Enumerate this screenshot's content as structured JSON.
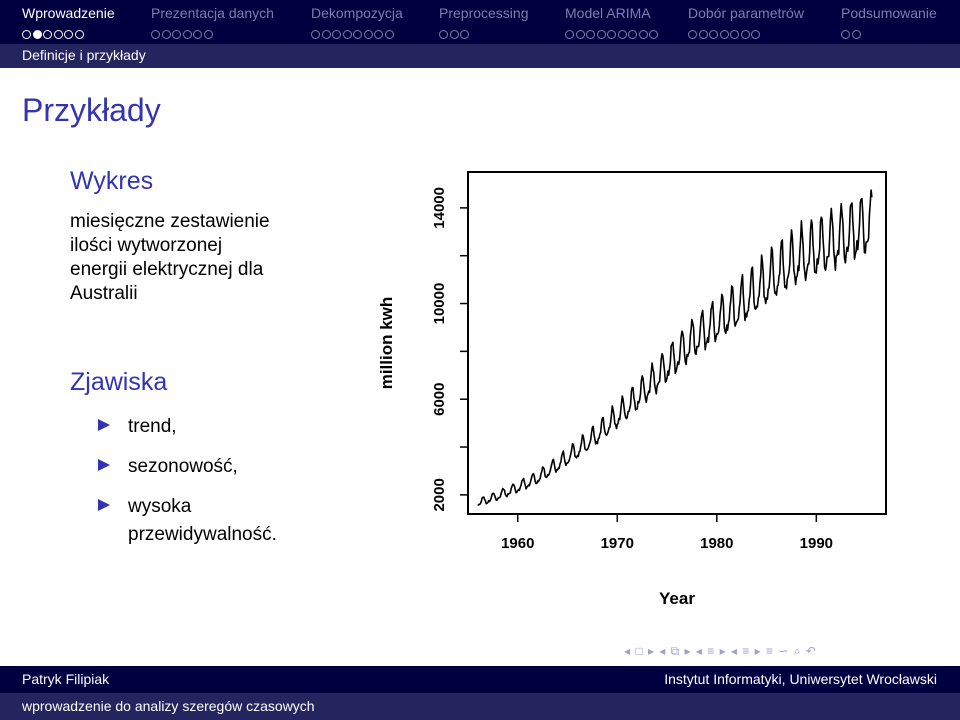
{
  "nav": {
    "sections": [
      {
        "label": "Wprowadzenie",
        "active": true,
        "dots": 6,
        "filled": [
          1
        ]
      },
      {
        "label": "Prezentacja danych",
        "active": false,
        "dots": 6,
        "filled": []
      },
      {
        "label": "Dekompozycja",
        "active": false,
        "dots": 8,
        "filled": []
      },
      {
        "label": "Preprocessing",
        "active": false,
        "dots": 3,
        "filled": []
      },
      {
        "label": "Model ARIMA",
        "active": false,
        "dots": 9,
        "filled": []
      },
      {
        "label": "Dobór parametrów",
        "active": false,
        "dots": 7,
        "filled": []
      },
      {
        "label": "Podsumowanie",
        "active": false,
        "dots": 2,
        "filled": []
      }
    ],
    "subsection": "Definicje i przykłady"
  },
  "frame": {
    "title": "Przykłady"
  },
  "block1": {
    "title": "Wykres",
    "lines": [
      "miesięczne zestawienie",
      "ilości wytworzonej",
      "energii elektrycznej dla",
      "Australii"
    ]
  },
  "block2": {
    "title": "Zjawiska",
    "items": [
      "trend,",
      "sezonowość,",
      "wysoka",
      "przewidywalność."
    ]
  },
  "nav_symbols": "◂ □ ▸ ◂ ⧉ ▸ ◂ ≡ ▸ ◂ ≡ ▸   ≡   ∽ ⌕ ↶",
  "footer": {
    "author": "Patryk Filipiak",
    "institute": "Instytut Informatyki, Uniwersytet Wrocławski",
    "short_title": "wprowadzenie do analizy szeregów czasowych"
  },
  "chart_data": {
    "type": "line",
    "xlabel": "Year",
    "ylabel": "million kwh",
    "xlim": [
      1955,
      1997
    ],
    "ylim": [
      1200,
      15500
    ],
    "xticks": [
      1960,
      1970,
      1980,
      1990
    ],
    "yticks": [
      2000,
      6000,
      10000,
      14000
    ],
    "yticks_minor": [
      4000,
      8000,
      12000
    ],
    "series": [
      {
        "x_start": 1956.0,
        "x_step": 0.0833333,
        "trend": [
          [
            1956,
            1650
          ],
          [
            1958,
            1950
          ],
          [
            1960,
            2300
          ],
          [
            1962,
            2700
          ],
          [
            1964,
            3250
          ],
          [
            1966,
            3850
          ],
          [
            1968,
            4500
          ],
          [
            1970,
            5250
          ],
          [
            1972,
            6050
          ],
          [
            1974,
            6900
          ],
          [
            1976,
            7800
          ],
          [
            1978,
            8600
          ],
          [
            1980,
            9200
          ],
          [
            1982,
            9800
          ],
          [
            1984,
            10500
          ],
          [
            1986,
            11200
          ],
          [
            1988,
            11800
          ],
          [
            1990,
            12200
          ],
          [
            1992,
            12600
          ],
          [
            1994,
            13000
          ],
          [
            1995.6,
            13300
          ]
        ],
        "seasonal_amplitude_fraction": 0.085
      }
    ]
  }
}
